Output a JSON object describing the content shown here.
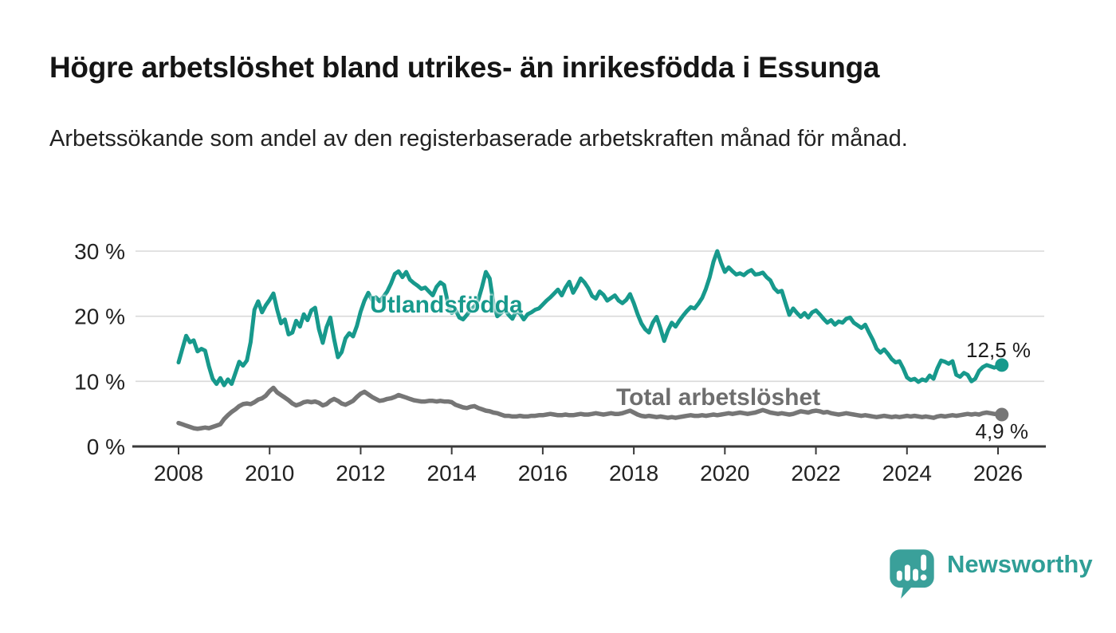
{
  "header": {
    "title": "Högre arbetslöshet bland utrikes- än inrikesfödda i Essunga",
    "subtitle": "Arbetssökande som andel av den registerbaserade arbetskraften månad för månad."
  },
  "colors": {
    "foreign_born": "#17998c",
    "total": "#767676",
    "axis": "#3a3a3a",
    "grid": "#d9d9d9",
    "tick_text": "#222222",
    "brand": "#2f9e96"
  },
  "chart_data": {
    "type": "line",
    "title": "Högre arbetslöshet bland utrikes- än inrikesfödda i Essunga",
    "subtitle": "Arbetssökande som andel av den registerbaserade arbetskraften månad för månad.",
    "x_unit": "year-month",
    "x_start_year": 2008,
    "x_step_months": 1,
    "xlim": [
      2008,
      2027
    ],
    "ylim": [
      0,
      31
    ],
    "grid": "horizontal",
    "legend_position": "inline-labels",
    "x_ticks": [
      {
        "value": 2008,
        "label": "2008"
      },
      {
        "value": 2010,
        "label": "2010"
      },
      {
        "value": 2012,
        "label": "2012"
      },
      {
        "value": 2014,
        "label": "2014"
      },
      {
        "value": 2016,
        "label": "2016"
      },
      {
        "value": 2018,
        "label": "2018"
      },
      {
        "value": 2020,
        "label": "2020"
      },
      {
        "value": 2022,
        "label": "2022"
      },
      {
        "value": 2024,
        "label": "2024"
      },
      {
        "value": 2026,
        "label": "2026"
      }
    ],
    "y_ticks": [
      {
        "value": 0,
        "label": "0 %"
      },
      {
        "value": 10,
        "label": "10 %"
      },
      {
        "value": 20,
        "label": "20 %"
      },
      {
        "value": 30,
        "label": "30 %"
      }
    ],
    "series": [
      {
        "name": "Utlandsfödda",
        "color_key": "foreign_born",
        "end_label": "12,5 %",
        "last_value": 12.5,
        "values": [
          12.9,
          15.0,
          17.0,
          16.0,
          16.3,
          14.6,
          15.0,
          14.7,
          12.3,
          10.4,
          9.6,
          10.5,
          9.4,
          10.3,
          9.6,
          11.3,
          13.0,
          12.4,
          13.2,
          16.0,
          21.0,
          22.3,
          20.6,
          21.7,
          22.5,
          23.5,
          21.0,
          18.9,
          19.5,
          17.2,
          17.5,
          19.3,
          18.4,
          20.3,
          19.4,
          20.9,
          21.3,
          18.0,
          15.9,
          18.3,
          19.8,
          16.5,
          13.7,
          14.5,
          16.6,
          17.4,
          16.9,
          18.5,
          20.7,
          22.4,
          23.6,
          22.5,
          22.9,
          22.3,
          23.0,
          23.8,
          25.0,
          26.5,
          26.9,
          26.0,
          26.8,
          25.6,
          25.1,
          24.7,
          24.2,
          24.4,
          23.8,
          23.2,
          24.5,
          25.2,
          24.8,
          22.0,
          20.5,
          21.0,
          19.8,
          19.5,
          20.2,
          21.0,
          21.5,
          22.5,
          24.5,
          26.8,
          25.8,
          22.0,
          20.0,
          20.5,
          21.0,
          20.2,
          19.6,
          20.8,
          20.4,
          19.5,
          20.3,
          20.6,
          21.0,
          21.2,
          21.8,
          22.4,
          22.9,
          23.5,
          24.1,
          23.2,
          24.4,
          25.3,
          23.6,
          24.6,
          25.8,
          25.2,
          24.3,
          23.1,
          22.7,
          23.8,
          23.3,
          22.4,
          22.8,
          23.2,
          22.4,
          22.0,
          22.5,
          23.4,
          22.0,
          20.3,
          18.9,
          18.0,
          17.5,
          19.0,
          19.9,
          18.2,
          16.2,
          17.8,
          19.0,
          18.4,
          19.3,
          20.1,
          20.8,
          21.4,
          21.2,
          21.9,
          22.8,
          24.2,
          26.0,
          28.4,
          30.0,
          28.2,
          26.8,
          27.5,
          26.9,
          26.4,
          26.6,
          26.3,
          26.8,
          27.1,
          26.4,
          26.5,
          26.7,
          26.0,
          25.5,
          24.3,
          23.7,
          23.9,
          22.0,
          20.2,
          21.2,
          20.5,
          19.9,
          20.5,
          19.8,
          20.6,
          20.9,
          20.3,
          19.6,
          19.0,
          19.4,
          18.7,
          19.2,
          19.0,
          19.6,
          19.8,
          19.0,
          18.6,
          18.2,
          18.7,
          17.5,
          16.4,
          15.0,
          14.4,
          14.9,
          14.2,
          13.4,
          12.9,
          13.1,
          12.0,
          10.6,
          10.2,
          10.4,
          9.9,
          10.3,
          10.1,
          10.9,
          10.4,
          12.0,
          13.2,
          13.0,
          12.7,
          13.1,
          11.0,
          10.7,
          11.3,
          11.0,
          10.0,
          10.4,
          11.6,
          12.2,
          12.5,
          12.3,
          12.1,
          12.3,
          12.5
        ]
      },
      {
        "name": "Total arbetslöshet",
        "color_key": "total",
        "end_label": "4,9 %",
        "last_value": 4.9,
        "values": [
          3.6,
          3.4,
          3.2,
          3.0,
          2.8,
          2.7,
          2.8,
          2.9,
          2.8,
          3.0,
          3.2,
          3.4,
          4.2,
          4.8,
          5.3,
          5.7,
          6.2,
          6.5,
          6.6,
          6.5,
          6.8,
          7.2,
          7.4,
          7.8,
          8.5,
          9.0,
          8.3,
          7.9,
          7.5,
          7.1,
          6.6,
          6.3,
          6.5,
          6.8,
          6.9,
          6.8,
          6.9,
          6.7,
          6.3,
          6.5,
          7.0,
          7.3,
          7.0,
          6.6,
          6.4,
          6.7,
          7.0,
          7.6,
          8.1,
          8.4,
          8.0,
          7.6,
          7.3,
          7.0,
          7.1,
          7.3,
          7.4,
          7.6,
          7.9,
          7.7,
          7.5,
          7.3,
          7.1,
          7.0,
          6.9,
          6.9,
          7.0,
          7.0,
          6.9,
          7.0,
          6.9,
          6.9,
          6.8,
          6.4,
          6.2,
          6.0,
          5.9,
          6.1,
          6.2,
          5.9,
          5.7,
          5.5,
          5.4,
          5.2,
          5.1,
          4.9,
          4.7,
          4.7,
          4.6,
          4.6,
          4.7,
          4.6,
          4.6,
          4.7,
          4.7,
          4.8,
          4.8,
          4.9,
          5.0,
          4.9,
          4.8,
          4.8,
          4.9,
          4.8,
          4.8,
          4.9,
          5.0,
          4.9,
          4.9,
          5.0,
          5.1,
          5.0,
          4.9,
          5.0,
          5.1,
          5.0,
          5.0,
          5.1,
          5.3,
          5.5,
          5.2,
          4.9,
          4.7,
          4.6,
          4.7,
          4.6,
          4.5,
          4.6,
          4.5,
          4.4,
          4.5,
          4.4,
          4.5,
          4.6,
          4.7,
          4.8,
          4.7,
          4.7,
          4.8,
          4.7,
          4.8,
          4.9,
          4.8,
          4.9,
          5.0,
          5.1,
          5.0,
          5.1,
          5.2,
          5.1,
          5.0,
          5.1,
          5.2,
          5.4,
          5.6,
          5.4,
          5.2,
          5.1,
          5.0,
          5.1,
          5.0,
          4.9,
          5.0,
          5.2,
          5.4,
          5.3,
          5.2,
          5.4,
          5.5,
          5.4,
          5.2,
          5.3,
          5.1,
          5.0,
          4.9,
          5.0,
          5.1,
          5.0,
          4.9,
          4.8,
          4.7,
          4.8,
          4.7,
          4.6,
          4.5,
          4.6,
          4.7,
          4.6,
          4.5,
          4.6,
          4.5,
          4.6,
          4.7,
          4.6,
          4.7,
          4.6,
          4.5,
          4.6,
          4.5,
          4.4,
          4.6,
          4.7,
          4.6,
          4.7,
          4.8,
          4.7,
          4.8,
          4.9,
          5.0,
          4.9,
          5.0,
          4.9,
          5.1,
          5.2,
          5.1,
          5.0,
          5.0,
          4.9
        ]
      }
    ]
  },
  "footer": {
    "brand_name": "Newsworthy"
  }
}
